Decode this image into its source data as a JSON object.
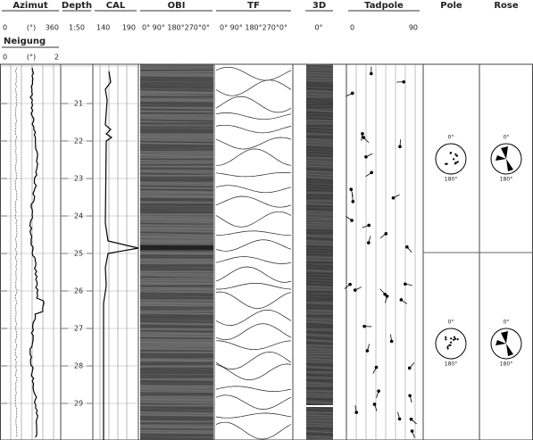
{
  "columns": [
    {
      "title": "Azimut",
      "scale": [
        "0",
        "(°)",
        "360"
      ]
    },
    {
      "title": "Depth",
      "scale": [
        "1:50"
      ]
    },
    {
      "title": "CAL",
      "scale": [
        "140",
        "190"
      ]
    },
    {
      "title": "OBI",
      "scale": [
        "0° 90° 180°270°0°"
      ]
    },
    {
      "title": "TF",
      "scale": [
        "0° 90° 180°270°0°"
      ]
    },
    {
      "title": "3D",
      "scale": [
        "0°"
      ]
    },
    {
      "title": "Tadpole",
      "scale": [
        "0",
        "90"
      ]
    },
    {
      "title": "Pole",
      "scale": []
    },
    {
      "title": "Rose",
      "scale": []
    }
  ],
  "neigung": {
    "title": "Neigung",
    "scale": [
      "0",
      "(°)",
      "2"
    ]
  },
  "depths": [
    "21",
    "22",
    "23",
    "24",
    "25",
    "26",
    "27",
    "28",
    "29"
  ],
  "nets": [
    {
      "top": "0°",
      "bottom": "180°"
    },
    {
      "top": "0°",
      "bottom": "180°"
    },
    {
      "top": "0°",
      "bottom": "180°"
    },
    {
      "top": "0°",
      "bottom": "180°"
    }
  ]
}
